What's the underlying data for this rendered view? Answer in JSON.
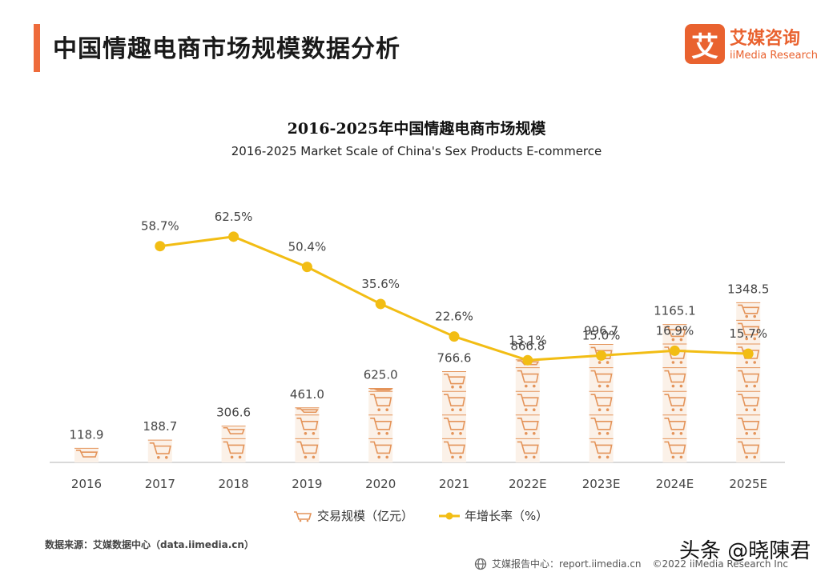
{
  "page": {
    "title": "中国情趣电商市场规模数据分析",
    "accent_color": "#ee6b3b"
  },
  "logo": {
    "mark": "艾",
    "name_cn": "艾媒咨询",
    "name_en": "iiMedia Research",
    "color": "#e9622f"
  },
  "chart_data": {
    "type": "bar",
    "title": "2016-2025年中国情趣电商市场规模",
    "subtitle": "2016-2025 Market Scale of China's Sex Products E-commerce",
    "categories": [
      "2016",
      "2017",
      "2018",
      "2019",
      "2020",
      "2021",
      "2022E",
      "2023E",
      "2024E",
      "2025E"
    ],
    "series": [
      {
        "name": "交易规模（亿元）",
        "type": "bar",
        "values": [
          118.9,
          188.7,
          306.6,
          461.0,
          625.0,
          766.6,
          866.8,
          996.7,
          1165.1,
          1348.5
        ],
        "labels": [
          "118.9",
          "188.7",
          "306.6",
          "461.0",
          "625.0",
          "766.6",
          "866.8",
          "996.7",
          "1165.1",
          "1348.5"
        ],
        "color": "#e4945a"
      },
      {
        "name": "年增长率（%）",
        "type": "line",
        "values": [
          null,
          58.7,
          62.5,
          50.4,
          35.6,
          22.6,
          13.1,
          15.0,
          16.9,
          15.7
        ],
        "labels": [
          "",
          "58.7%",
          "62.5%",
          "50.4%",
          "35.6%",
          "22.6%",
          "13.1%",
          "15.0%",
          "16.9%",
          "15.7%"
        ],
        "color": "#f2bd14"
      }
    ],
    "bar_icon": "shopping-cart-icon",
    "grid": false,
    "legend_position": "bottom"
  },
  "source": "数据来源：艾媒数据中心（data.iimedia.cn）",
  "footer": {
    "icon": "globe-icon",
    "text": "艾媒报告中心：report.iimedia.cn",
    "copyright": "©2022  iiMedia Research  Inc"
  },
  "watermark": "头条 @晓陳君"
}
